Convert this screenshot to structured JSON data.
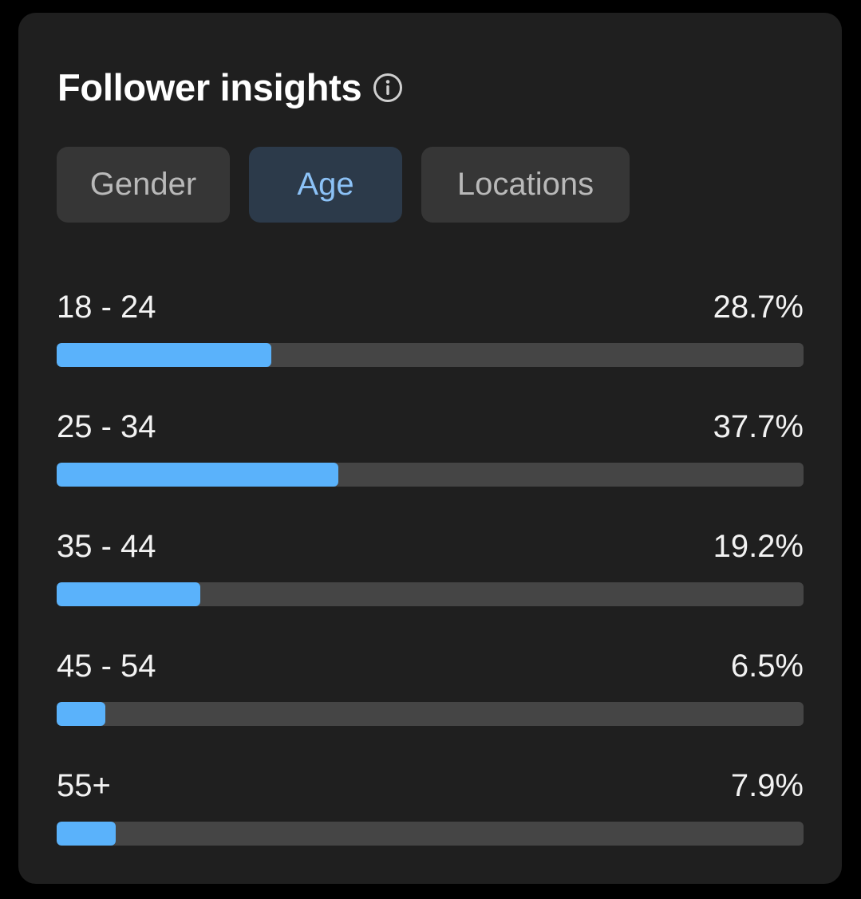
{
  "card": {
    "title": "Follower insights",
    "info_icon": "info-circle-icon"
  },
  "tabs": [
    {
      "label": "Gender",
      "active": false
    },
    {
      "label": "Age",
      "active": true
    },
    {
      "label": "Locations",
      "active": false
    }
  ],
  "age_rows": [
    {
      "range": "18 - 24",
      "percent_label": "28.7%",
      "percent": 28.7
    },
    {
      "range": "25 - 34",
      "percent_label": "37.7%",
      "percent": 37.7
    },
    {
      "range": "35 - 44",
      "percent_label": "19.2%",
      "percent": 19.2
    },
    {
      "range": "45 - 54",
      "percent_label": "6.5%",
      "percent": 6.5
    },
    {
      "range": "55+",
      "percent_label": "7.9%",
      "percent": 7.9
    }
  ],
  "colors": {
    "background": "#000000",
    "card": "#1f1f1f",
    "tab_inactive_bg": "#363636",
    "tab_active_bg": "#2c3a4a",
    "tab_active_text": "#8cc2f7",
    "bar_track": "#454545",
    "bar_fill": "#5ab2fb"
  }
}
